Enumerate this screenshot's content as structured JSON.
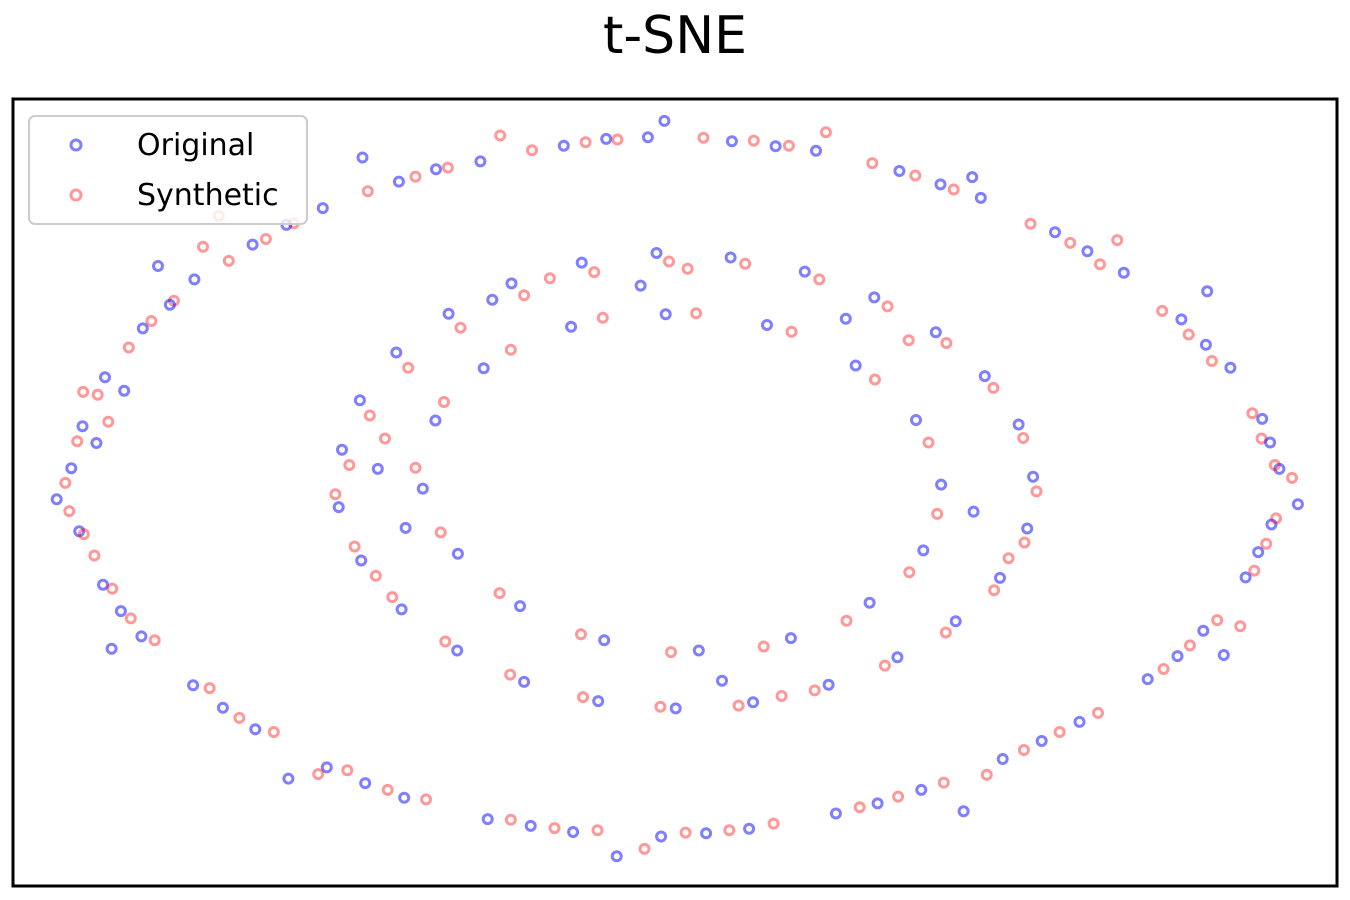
{
  "chart_data": {
    "type": "scatter",
    "title": "t-SNE",
    "xlabel": "",
    "ylabel": "",
    "xlim": [
      -100,
      100
    ],
    "ylim": [
      -70,
      70
    ],
    "grid": false,
    "ticks_visible": false,
    "legend_position": "top-left",
    "layout_description": "Two concentric noisy rings: an outer ring and an inner ring with an empty center; both series are interleaved throughout.",
    "series": [
      {
        "name": "Original",
        "color": "#0000ff",
        "alpha": 0.5,
        "marker": "hollow-circle",
        "points": [
          [
            -91.2,
            4.3
          ],
          [
            -89.5,
            11.8
          ],
          [
            -86.1,
            20.5
          ],
          [
            -80.4,
            29.2
          ],
          [
            -72.6,
            37.9
          ],
          [
            -63.8,
            44.1
          ],
          [
            -53.2,
            50.6
          ],
          [
            -41.7,
            55.3
          ],
          [
            -29.4,
            58.9
          ],
          [
            -16.8,
            61.7
          ],
          [
            -4.1,
            63.2
          ],
          [
            8.6,
            62.5
          ],
          [
            21.3,
            60.8
          ],
          [
            33.9,
            57.2
          ],
          [
            46.2,
            52.4
          ],
          [
            57.4,
            46.3
          ],
          [
            67.8,
            39.1
          ],
          [
            76.5,
            30.8
          ],
          [
            83.9,
            22.2
          ],
          [
            88.7,
            13.1
          ],
          [
            91.3,
            4.2
          ],
          [
            90.1,
            -5.7
          ],
          [
            86.2,
            -15.1
          ],
          [
            79.8,
            -24.6
          ],
          [
            71.4,
            -33.2
          ],
          [
            61.1,
            -40.8
          ],
          [
            49.5,
            -47.4
          ],
          [
            37.2,
            -52.9
          ],
          [
            24.3,
            -57.1
          ],
          [
            11.2,
            -59.8
          ],
          [
            -2.1,
            -61.2
          ],
          [
            -15.4,
            -60.4
          ],
          [
            -28.3,
            -58.1
          ],
          [
            -40.9,
            -54.3
          ],
          [
            -52.6,
            -48.9
          ],
          [
            -63.4,
            -42.1
          ],
          [
            -72.8,
            -34.3
          ],
          [
            -80.6,
            -25.6
          ],
          [
            -86.4,
            -16.4
          ],
          [
            -90.0,
            -6.9
          ],
          [
            -87.4,
            8.8
          ],
          [
            -83.2,
            18.1
          ],
          [
            -76.3,
            33.4
          ],
          [
            -58.7,
            47.6
          ],
          [
            -36.1,
            57.5
          ],
          [
            -10.4,
            62.9
          ],
          [
            15.2,
            61.6
          ],
          [
            40.1,
            54.8
          ],
          [
            62.3,
            42.9
          ],
          [
            80.2,
            26.3
          ],
          [
            89.9,
            8.9
          ],
          [
            88.1,
            -10.6
          ],
          [
            75.9,
            -29.1
          ],
          [
            55.4,
            -44.2
          ],
          [
            30.6,
            -55.3
          ],
          [
            4.7,
            -60.6
          ],
          [
            -21.8,
            -59.3
          ],
          [
            -46.8,
            -51.7
          ],
          [
            -68.3,
            -38.3
          ],
          [
            -83.7,
            -21.1
          ],
          [
            -93.4,
            -1.2
          ],
          [
            -78.1,
            40.3
          ],
          [
            -47.2,
            59.6
          ],
          [
            -1.6,
            66.1
          ],
          [
            44.9,
            56.1
          ],
          [
            80.4,
            35.8
          ],
          [
            94.1,
            -2.1
          ],
          [
            82.9,
            -28.9
          ],
          [
            43.6,
            -56.7
          ],
          [
            -8.8,
            -64.7
          ],
          [
            -58.4,
            -50.9
          ],
          [
            -85.1,
            -27.8
          ],
          [
            -50.3,
            7.6
          ],
          [
            -47.6,
            16.4
          ],
          [
            -42.1,
            24.9
          ],
          [
            -34.2,
            31.8
          ],
          [
            -24.7,
            37.2
          ],
          [
            -14.1,
            40.9
          ],
          [
            -2.8,
            42.6
          ],
          [
            8.4,
            41.8
          ],
          [
            19.6,
            39.3
          ],
          [
            30.1,
            34.7
          ],
          [
            39.4,
            28.5
          ],
          [
            46.8,
            20.7
          ],
          [
            51.9,
            12.1
          ],
          [
            54.1,
            2.8
          ],
          [
            53.2,
            -6.4
          ],
          [
            49.1,
            -15.2
          ],
          [
            42.4,
            -22.9
          ],
          [
            33.6,
            -29.3
          ],
          [
            23.2,
            -34.2
          ],
          [
            11.8,
            -37.3
          ],
          [
            0.1,
            -38.4
          ],
          [
            -11.6,
            -37.1
          ],
          [
            -22.8,
            -33.7
          ],
          [
            -32.9,
            -28.1
          ],
          [
            -41.3,
            -20.8
          ],
          [
            -47.4,
            -12.1
          ],
          [
            -50.8,
            -2.6
          ],
          [
            -36.2,
            12.8
          ],
          [
            -28.9,
            22.1
          ],
          [
            -15.7,
            29.5
          ],
          [
            -1.4,
            31.7
          ],
          [
            13.9,
            29.8
          ],
          [
            27.3,
            22.6
          ],
          [
            36.4,
            12.9
          ],
          [
            40.2,
            1.4
          ],
          [
            37.5,
            -10.3
          ],
          [
            29.4,
            -19.6
          ],
          [
            17.5,
            -25.9
          ],
          [
            3.6,
            -28.1
          ],
          [
            -10.7,
            -26.3
          ],
          [
            -23.4,
            -20.2
          ],
          [
            -32.8,
            -10.9
          ],
          [
            -38.1,
            0.7
          ],
          [
            -44.9,
            4.2
          ],
          [
            -40.7,
            -6.3
          ],
          [
            45.1,
            -3.4
          ],
          [
            25.8,
            30.9
          ],
          [
            -27.6,
            34.3
          ],
          [
            7.1,
            -33.5
          ],
          [
            -5.2,
            36.8
          ]
        ]
      },
      {
        "name": "Synthetic",
        "color": "#ff0000",
        "alpha": 0.4,
        "marker": "hollow-circle",
        "points": [
          [
            -92.1,
            1.7
          ],
          [
            -90.3,
            9.1
          ],
          [
            -87.2,
            17.4
          ],
          [
            -82.5,
            25.8
          ],
          [
            -75.7,
            34.1
          ],
          [
            -67.4,
            41.2
          ],
          [
            -57.6,
            47.9
          ],
          [
            -46.4,
            53.6
          ],
          [
            -34.3,
            57.8
          ],
          [
            -21.6,
            60.9
          ],
          [
            -8.7,
            62.8
          ],
          [
            4.3,
            63.1
          ],
          [
            17.2,
            61.7
          ],
          [
            29.8,
            58.6
          ],
          [
            42.1,
            53.9
          ],
          [
            53.7,
            47.8
          ],
          [
            64.2,
            40.6
          ],
          [
            73.6,
            32.3
          ],
          [
            81.1,
            23.4
          ],
          [
            87.2,
            14.1
          ],
          [
            90.6,
            4.9
          ],
          [
            90.8,
            -4.6
          ],
          [
            87.5,
            -13.9
          ],
          [
            81.9,
            -22.7
          ],
          [
            73.8,
            -31.4
          ],
          [
            63.9,
            -39.2
          ],
          [
            52.7,
            -45.8
          ],
          [
            40.6,
            -51.6
          ],
          [
            27.9,
            -56.0
          ],
          [
            14.9,
            -58.9
          ],
          [
            1.6,
            -60.5
          ],
          [
            -11.7,
            -60.1
          ],
          [
            -24.8,
            -58.2
          ],
          [
            -37.6,
            -54.6
          ],
          [
            -49.5,
            -49.4
          ],
          [
            -60.6,
            -42.6
          ],
          [
            -70.3,
            -34.8
          ],
          [
            -78.6,
            -26.3
          ],
          [
            -85.0,
            -17.1
          ],
          [
            -89.3,
            -7.4
          ],
          [
            -85.6,
            12.6
          ],
          [
            -79.1,
            30.5
          ],
          [
            -61.8,
            45.1
          ],
          [
            -39.2,
            56.2
          ],
          [
            -13.5,
            62.3
          ],
          [
            11.9,
            62.6
          ],
          [
            36.3,
            56.4
          ],
          [
            59.7,
            44.4
          ],
          [
            77.6,
            28.1
          ],
          [
            88.6,
            9.6
          ],
          [
            89.3,
            -9.1
          ],
          [
            77.8,
            -27.2
          ],
          [
            58.1,
            -42.6
          ],
          [
            33.7,
            -54.1
          ],
          [
            8.2,
            -60.1
          ],
          [
            -18.2,
            -59.7
          ],
          [
            -43.4,
            -52.9
          ],
          [
            -65.8,
            -40.1
          ],
          [
            -82.2,
            -22.4
          ],
          [
            -91.5,
            -3.3
          ],
          [
            -71.3,
            43.7
          ],
          [
            -26.4,
            63.5
          ],
          [
            22.8,
            64.1
          ],
          [
            66.8,
            44.9
          ],
          [
            93.2,
            2.6
          ],
          [
            85.4,
            -23.8
          ],
          [
            47.1,
            -50.2
          ],
          [
            -4.6,
            -63.4
          ],
          [
            -53.9,
            -50.1
          ],
          [
            -87.7,
            -11.2
          ],
          [
            -89.4,
            17.9
          ],
          [
            -68.9,
            49.2
          ],
          [
            -49.2,
            4.9
          ],
          [
            -46.1,
            13.7
          ],
          [
            -40.3,
            22.2
          ],
          [
            -32.4,
            29.3
          ],
          [
            -22.8,
            35.1
          ],
          [
            -12.2,
            39.2
          ],
          [
            -0.9,
            41.1
          ],
          [
            10.6,
            40.7
          ],
          [
            21.8,
            37.9
          ],
          [
            32.1,
            33.1
          ],
          [
            41.0,
            26.6
          ],
          [
            48.1,
            18.6
          ],
          [
            52.6,
            9.7
          ],
          [
            54.6,
            0.2
          ],
          [
            52.8,
            -8.9
          ],
          [
            48.2,
            -17.4
          ],
          [
            40.9,
            -24.9
          ],
          [
            31.7,
            -30.8
          ],
          [
            21.1,
            -35.2
          ],
          [
            9.6,
            -37.9
          ],
          [
            -2.2,
            -38.1
          ],
          [
            -13.9,
            -36.4
          ],
          [
            -24.9,
            -32.4
          ],
          [
            -34.7,
            -26.5
          ],
          [
            -42.7,
            -18.6
          ],
          [
            -48.4,
            -9.6
          ],
          [
            -51.3,
            -0.3
          ],
          [
            -34.9,
            16.1
          ],
          [
            -24.8,
            25.4
          ],
          [
            -10.9,
            31.1
          ],
          [
            3.2,
            31.9
          ],
          [
            17.6,
            28.6
          ],
          [
            30.2,
            20.1
          ],
          [
            38.3,
            8.9
          ],
          [
            39.6,
            -3.8
          ],
          [
            35.4,
            -14.2
          ],
          [
            25.9,
            -22.8
          ],
          [
            13.4,
            -27.4
          ],
          [
            -0.6,
            -28.4
          ],
          [
            -14.2,
            -25.2
          ],
          [
            -26.5,
            -17.9
          ],
          [
            -35.4,
            -7.1
          ],
          [
            -39.2,
            4.4
          ],
          [
            -43.8,
            9.6
          ],
          [
            -45.2,
            -14.8
          ],
          [
            50.4,
            -11.7
          ],
          [
            35.3,
            27.1
          ],
          [
            -18.9,
            38.1
          ],
          [
            16.1,
            -36.2
          ],
          [
            1.9,
            39.8
          ]
        ]
      }
    ]
  }
}
